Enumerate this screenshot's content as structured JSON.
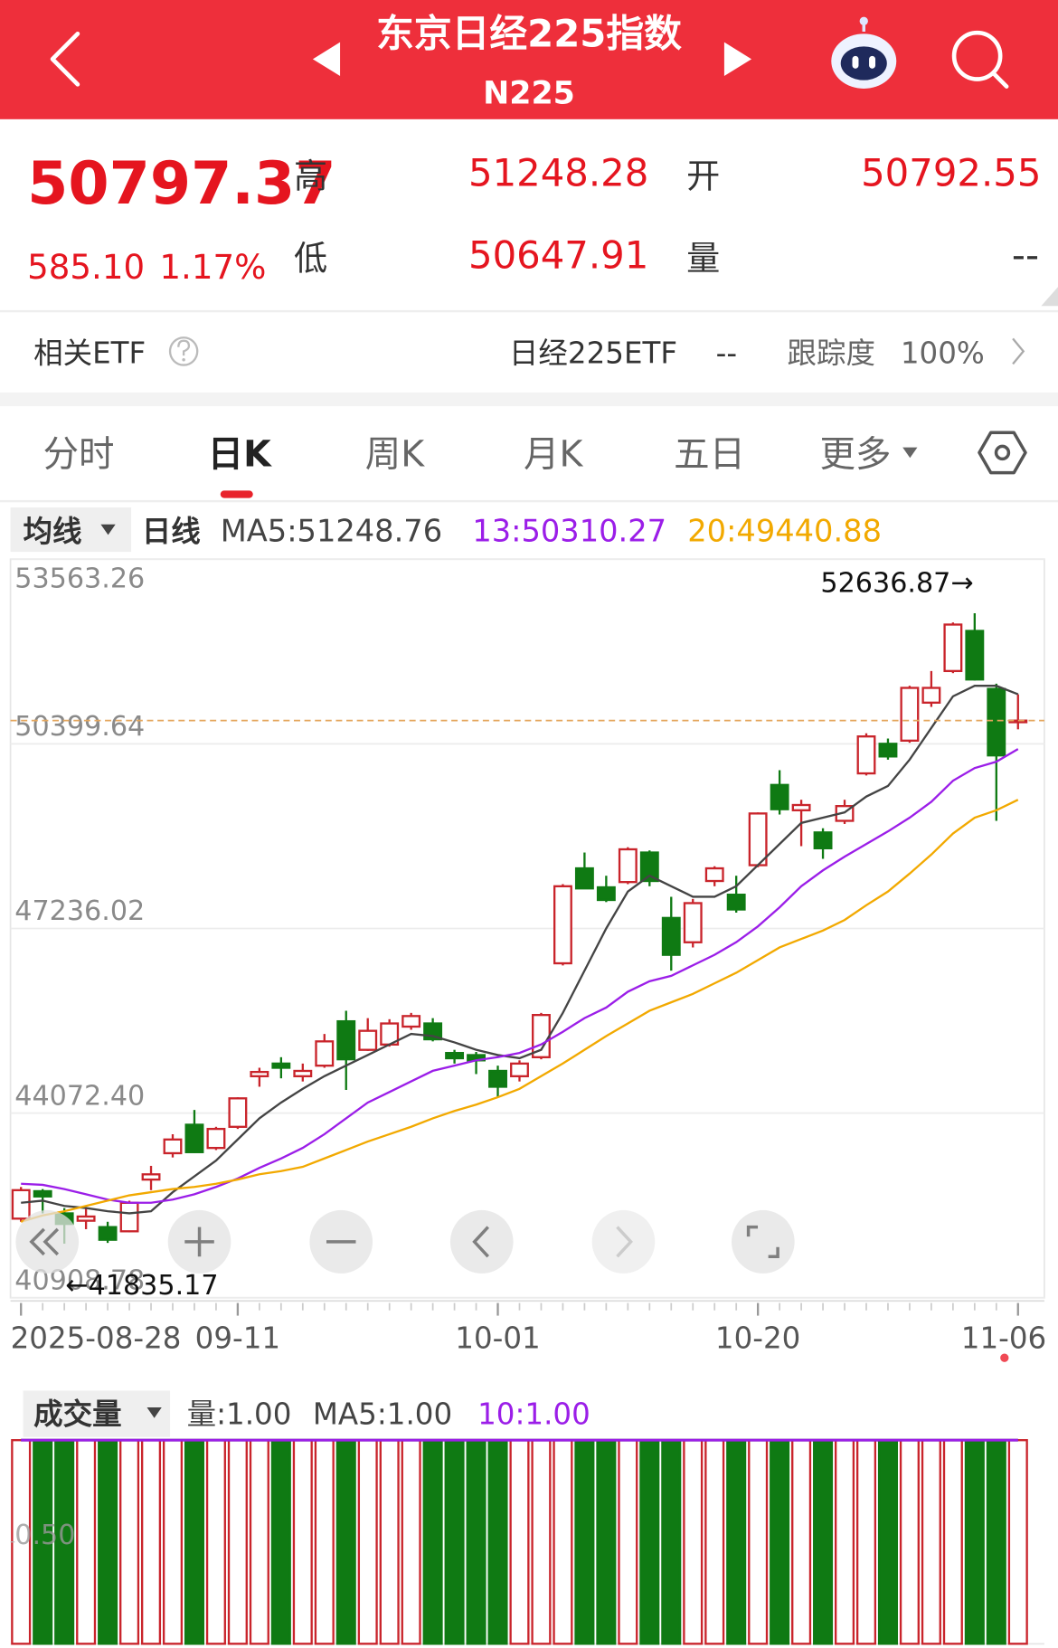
{
  "header": {
    "title": "东京日经225指数",
    "code": "N225"
  },
  "quote": {
    "price": "50797.37",
    "change": "585.10",
    "change_pct": "1.17%",
    "high_label": "高",
    "high": "51248.28",
    "open_label": "开",
    "open": "50792.55",
    "low_label": "低",
    "low": "50647.91",
    "volume_label": "量",
    "volume": "--"
  },
  "etf": {
    "label": "相关ETF",
    "name": "日经225ETF",
    "value": "--",
    "tracking_label": "跟踪度",
    "tracking": "100%"
  },
  "tabs": [
    "分时",
    "日K",
    "周K",
    "月K",
    "五日",
    "更多"
  ],
  "indicator": {
    "selector": "均线",
    "period": "日线"
  },
  "chart_data": [
    {
      "type": "candlestick",
      "categories": [
        "2025-08-28",
        null,
        null,
        null,
        null,
        null,
        null,
        null,
        null,
        null,
        "09-11",
        null,
        null,
        null,
        null,
        null,
        null,
        null,
        null,
        null,
        null,
        null,
        "10-01",
        null,
        null,
        null,
        null,
        null,
        null,
        null,
        null,
        null,
        null,
        null,
        "10-20",
        null,
        null,
        null,
        null,
        null,
        null,
        null,
        null,
        null,
        null,
        null,
        "11-06"
      ],
      "open": [
        42264,
        42734,
        42354,
        42228,
        42119,
        42047,
        42933,
        43385,
        43873,
        43475,
        43837,
        44704,
        44921,
        44704,
        44885,
        45645,
        45156,
        45247,
        45554,
        45608,
        45102,
        45066,
        44795,
        44704,
        45030,
        46639,
        48266,
        47941,
        48031,
        48537,
        47416,
        46999,
        48049,
        47814,
        48320,
        49695,
        49261,
        48881,
        49080,
        49893,
        50400,
        50454,
        51105,
        51647,
        52334,
        51340,
        50792.55
      ],
      "high": [
        42806,
        42770,
        42444,
        42444,
        42210,
        42571,
        43168,
        43710,
        44126,
        43837,
        44343,
        44849,
        45030,
        44921,
        45428,
        45825,
        45699,
        45681,
        45789,
        45699,
        45156,
        45120,
        44885,
        44976,
        45789,
        47995,
        48537,
        48139,
        48628,
        48573,
        47778,
        47742,
        48302,
        48139,
        49224,
        49948,
        49441,
        48953,
        49441,
        50580,
        50490,
        51394,
        51647,
        52479,
        52636.87,
        51430,
        51248.28
      ],
      "low": [
        42210,
        42354,
        41835.17,
        42083,
        41848,
        42029,
        42752,
        43312,
        43390,
        43439,
        43801,
        44524,
        44668,
        44614,
        44849,
        44470,
        45138,
        45211,
        45500,
        45301,
        44921,
        44741,
        44343,
        44614,
        44994,
        46603,
        47910,
        47688,
        47995,
        47959,
        46513,
        46910,
        47959,
        47507,
        48284,
        49188,
        48646,
        48429,
        49026,
        49857,
        50128,
        50418,
        51032,
        51611,
        51484,
        49080,
        50647.91
      ],
      "close": [
        42752,
        42644,
        42173,
        42300,
        41902,
        42535,
        43023,
        43620,
        43403,
        43801,
        44325,
        44777,
        44849,
        44795,
        45301,
        44994,
        45482,
        45608,
        45735,
        45337,
        45012,
        44976,
        44524,
        44921,
        45753,
        47959,
        47922,
        47724,
        48592,
        48049,
        46784,
        47670,
        48266,
        47561,
        49206,
        49279,
        49351,
        48610,
        49333,
        50526,
        50183,
        51358,
        51358,
        52443,
        51502,
        50201,
        50797.37
      ],
      "up_color": "#c9242b",
      "down_color": "#0f7a13",
      "series": [
        {
          "label": "MA5:51248.76",
          "color": "#444444",
          "values": [
            42536,
            42572,
            42482,
            42446,
            42391,
            42355,
            42391,
            42717,
            42988,
            43259,
            43621,
            43982,
            44253,
            44488,
            44705,
            44886,
            45067,
            45248,
            45429,
            45392,
            45284,
            45157,
            45067,
            45013,
            45157,
            45790,
            46513,
            47236,
            47869,
            48140,
            47960,
            47779,
            47779,
            47960,
            48321,
            48683,
            49044,
            49134,
            49225,
            49496,
            49677,
            50129,
            50671,
            51213,
            51394,
            51394,
            51248.76
          ]
        },
        {
          "label": "13:50310.27",
          "color": "#9b1ee8",
          "values": [
            42861,
            42843,
            42771,
            42681,
            42590,
            42536,
            42536,
            42590,
            42681,
            42807,
            42952,
            43133,
            43295,
            43476,
            43711,
            43982,
            44253,
            44434,
            44615,
            44796,
            44886,
            44977,
            45031,
            45103,
            45248,
            45465,
            45700,
            45880,
            46152,
            46332,
            46423,
            46604,
            46784,
            47001,
            47272,
            47598,
            47960,
            48231,
            48466,
            48683,
            48899,
            49134,
            49406,
            49767,
            49984,
            50093,
            50310.27
          ]
        },
        {
          "label": "20:49440.88",
          "color": "#f2a900",
          "values": [
            42211,
            42319,
            42391,
            42482,
            42572,
            42663,
            42717,
            42771,
            42807,
            42861,
            42934,
            43024,
            43078,
            43151,
            43295,
            43440,
            43585,
            43711,
            43838,
            43982,
            44109,
            44217,
            44344,
            44488,
            44705,
            44922,
            45157,
            45392,
            45609,
            45826,
            45971,
            46115,
            46296,
            46477,
            46694,
            46911,
            47056,
            47200,
            47381,
            47634,
            47869,
            48176,
            48502,
            48863,
            49134,
            49261,
            49440.88
          ]
        }
      ],
      "ylim": [
        40908.78,
        53563.26
      ],
      "yticks": [
        53563.26,
        50399.64,
        47236.02,
        {
          "value": 44072.4,
          "label": "44072.40"
        },
        40908.78
      ],
      "grid": true,
      "high_note": "52636.87→",
      "low_note": "←41835.17"
    },
    {
      "type": "bar",
      "title": "成交量",
      "volume_label": "量:1.00",
      "values": [
        1,
        1,
        1,
        1,
        1,
        1,
        1,
        1,
        1,
        1,
        1,
        1,
        1,
        1,
        1,
        1,
        1,
        1,
        1,
        1,
        1,
        1,
        1,
        1,
        1,
        1,
        1,
        1,
        1,
        1,
        1,
        1,
        1,
        1,
        1,
        1,
        1,
        1,
        1,
        1,
        1,
        1,
        1,
        1,
        1,
        1,
        1
      ],
      "ylim": [
        0,
        1
      ],
      "yticks": [
        {
          "value": 0.5,
          "label": "0.50"
        }
      ],
      "series": [
        {
          "label": "MA5:1.00",
          "color": "#444444",
          "values": [
            1,
            1,
            1,
            1,
            1,
            1,
            1,
            1,
            1,
            1,
            1,
            1,
            1,
            1,
            1,
            1,
            1,
            1,
            1,
            1,
            1,
            1,
            1,
            1,
            1,
            1,
            1,
            1,
            1,
            1,
            1,
            1,
            1,
            1,
            1,
            1,
            1,
            1,
            1,
            1,
            1,
            1,
            1,
            1,
            1,
            1,
            1
          ]
        },
        {
          "label": "10:1.00",
          "color": "#9b1ee8",
          "values": [
            1,
            1,
            1,
            1,
            1,
            1,
            1,
            1,
            1,
            1,
            1,
            1,
            1,
            1,
            1,
            1,
            1,
            1,
            1,
            1,
            1,
            1,
            1,
            1,
            1,
            1,
            1,
            1,
            1,
            1,
            1,
            1,
            1,
            1,
            1,
            1,
            1,
            1,
            1,
            1,
            1,
            1,
            1,
            1,
            1,
            1,
            1
          ]
        }
      ]
    }
  ]
}
